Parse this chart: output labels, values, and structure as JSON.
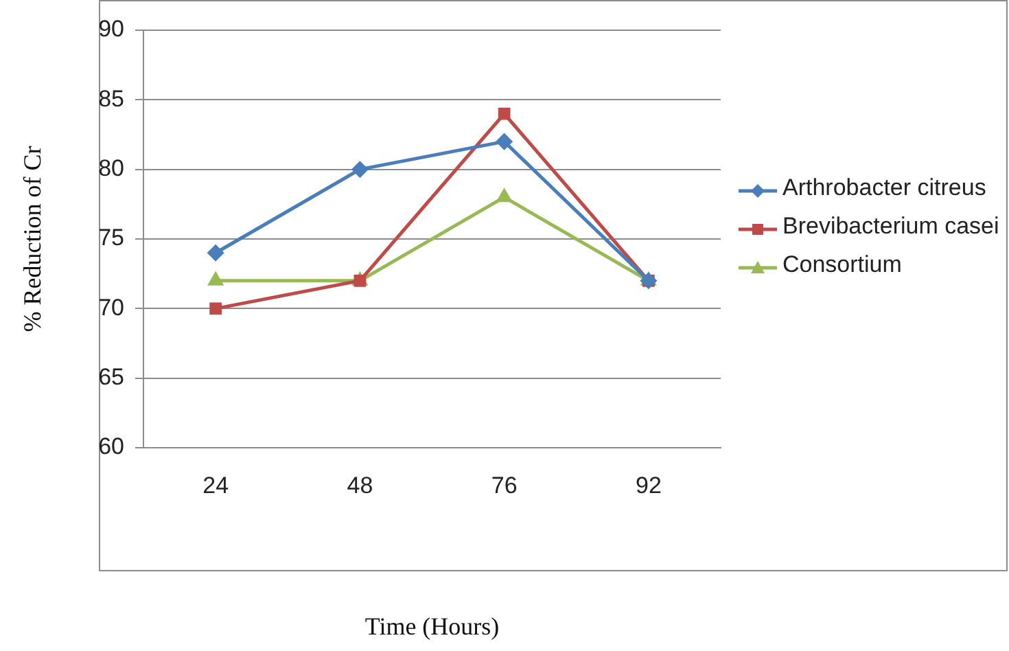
{
  "chart_data": {
    "type": "line",
    "xlabel": "Time (Hours)",
    "ylabel": "% Reduction of Cr",
    "categories": [
      "24",
      "48",
      "76",
      "92"
    ],
    "ylim": [
      60,
      90
    ],
    "yticks": [
      60,
      65,
      70,
      75,
      80,
      85,
      90
    ],
    "grid": "y",
    "legend": "right",
    "series": [
      {
        "name": "Arthrobacter citreus",
        "color": "#4a7ebb",
        "marker": "diamond",
        "values": [
          74,
          80,
          82,
          72
        ]
      },
      {
        "name": "Brevibacterium casei",
        "color": "#be4b48",
        "marker": "square",
        "values": [
          70,
          72,
          84,
          72
        ]
      },
      {
        "name": "Consortium",
        "color": "#98b954",
        "marker": "triangle",
        "values": [
          72,
          72,
          78,
          72
        ]
      }
    ]
  }
}
